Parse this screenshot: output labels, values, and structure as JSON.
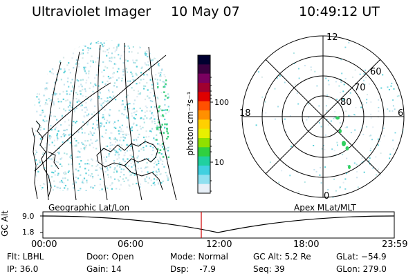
{
  "header": {
    "instrument": "Ultraviolet Imager",
    "date": "10 May 07",
    "time": "10:49:12 UT"
  },
  "colorbar": {
    "unit_label": "photon cm⁻²s⁻¹",
    "ticks": [
      "100",
      "10"
    ],
    "colors": [
      "#000030",
      "#3a0040",
      "#7a0060",
      "#a00030",
      "#e00000",
      "#ff5000",
      "#ff9000",
      "#ffd000",
      "#e8f000",
      "#90e000",
      "#30d040",
      "#20d0a0",
      "#40d0e0",
      "#90e0f0",
      "#e8f0f8"
    ]
  },
  "geo_panel": {
    "label": "Geographic Lat/Lon"
  },
  "polar_panel": {
    "label": "Apex MLat/MLT",
    "mlt_labels": {
      "top": "12",
      "left": "18",
      "right": "6",
      "bottom": "0"
    },
    "lat_labels": [
      "60",
      "70",
      "80"
    ]
  },
  "timeline": {
    "ylabel": "GC Alt",
    "yticks": [
      "9.0",
      "1.8"
    ],
    "xticks": [
      "00:00",
      "06:00",
      "12:00",
      "18:00",
      "23:59"
    ],
    "current_time_fraction": 0.4508
  },
  "info": {
    "filter": "Flt: LBHL",
    "ip": "IP: 36.0",
    "door": "Door: Open",
    "gain": "Gain: 14",
    "mode": "Mode: Normal",
    "dsp": "Dsp:    -7.9",
    "gc_alt": "GC Alt: 5.2 Re",
    "seq": "Seq: 39",
    "glat": "GLat: −54.9",
    "glon": "GLon: 279.0"
  },
  "colors": {
    "time_marker": "#d00000"
  }
}
